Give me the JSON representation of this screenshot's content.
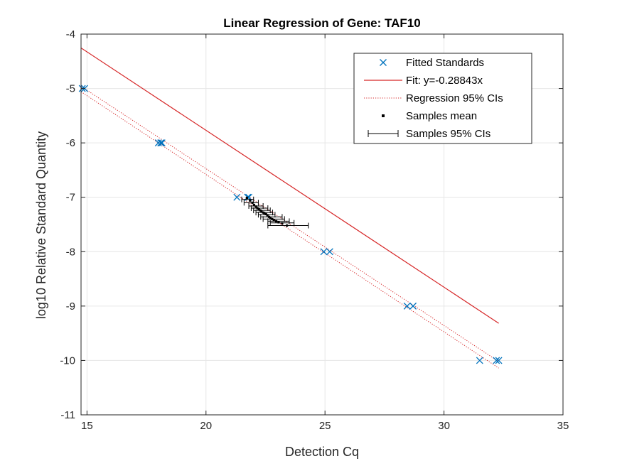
{
  "chart_data": {
    "type": "scatter",
    "title": "Linear Regression of Gene: TAF10",
    "xlabel": "Detection Cq",
    "ylabel": "log10 Relative Standard Quantity",
    "xlim": [
      14.75,
      35
    ],
    "ylim": [
      -11,
      -4
    ],
    "xticks": [
      15,
      20,
      25,
      30,
      35
    ],
    "yticks": [
      -11,
      -10,
      -9,
      -8,
      -7,
      -6,
      -5,
      -4
    ],
    "xtick_labels": [
      "15",
      "20",
      "25",
      "30",
      "35"
    ],
    "ytick_labels": [
      "-11",
      "-10",
      "-9",
      "-8",
      "-7",
      "-6",
      "-5",
      "-4"
    ],
    "grid": true,
    "legend_position": "top-right",
    "colors": {
      "standards": "#0072BD",
      "fit": "#D62728",
      "ci": "#D62728",
      "samples": "#000000",
      "grid": "#E6E6E6",
      "axes": "#262626"
    },
    "fit": {
      "slope": -0.28843,
      "intercept": 0,
      "x_range": [
        14.75,
        32.3
      ]
    },
    "regression_ci": {
      "upper": [
        [
          14.75,
          -4.96
        ],
        [
          32.3,
          -10.02
        ]
      ],
      "lower": [
        [
          14.75,
          -5.06
        ],
        [
          32.3,
          -10.14
        ]
      ]
    },
    "series": [
      {
        "name": "Fitted Standards",
        "marker": "x",
        "points": [
          [
            14.8,
            -5
          ],
          [
            14.9,
            -5
          ],
          [
            18.0,
            -6
          ],
          [
            18.1,
            -6
          ],
          [
            18.15,
            -6
          ],
          [
            21.3,
            -7
          ],
          [
            21.75,
            -7
          ],
          [
            21.8,
            -7
          ],
          [
            24.95,
            -8
          ],
          [
            25.2,
            -8
          ],
          [
            28.45,
            -9
          ],
          [
            28.7,
            -9
          ],
          [
            31.5,
            -10
          ],
          [
            32.2,
            -10
          ],
          [
            32.3,
            -10
          ]
        ]
      },
      {
        "name": "Fit: y=-0.28843x",
        "marker": "line"
      },
      {
        "name": "Regression 95% CIs",
        "marker": "dotted"
      },
      {
        "name": "Samples mean",
        "marker": "dot",
        "points": [
          [
            21.72,
            -7.01
          ],
          [
            21.85,
            -7.06
          ],
          [
            21.95,
            -7.1
          ],
          [
            22.02,
            -7.14
          ],
          [
            22.1,
            -7.17
          ],
          [
            22.16,
            -7.2
          ],
          [
            22.22,
            -7.22
          ],
          [
            22.28,
            -7.24
          ],
          [
            22.33,
            -7.26
          ],
          [
            22.4,
            -7.28
          ],
          [
            22.45,
            -7.29
          ],
          [
            22.52,
            -7.31
          ],
          [
            22.58,
            -7.33
          ],
          [
            22.65,
            -7.36
          ],
          [
            22.7,
            -7.38
          ],
          [
            22.78,
            -7.4
          ],
          [
            22.85,
            -7.42
          ],
          [
            22.95,
            -7.44
          ],
          [
            23.05,
            -7.46
          ],
          [
            23.2,
            -7.48
          ],
          [
            23.4,
            -7.52
          ]
        ]
      },
      {
        "name": "Samples 95% CIs",
        "marker": "errorbar",
        "intervals": [
          [
            21.5,
            22.0,
            -7.04
          ],
          [
            21.6,
            22.2,
            -7.1
          ],
          [
            21.8,
            22.4,
            -7.16
          ],
          [
            21.9,
            22.6,
            -7.2
          ],
          [
            22.0,
            22.7,
            -7.24
          ],
          [
            22.1,
            22.8,
            -7.28
          ],
          [
            22.2,
            22.9,
            -7.32
          ],
          [
            22.3,
            23.2,
            -7.36
          ],
          [
            22.4,
            23.3,
            -7.4
          ],
          [
            22.6,
            23.5,
            -7.44
          ],
          [
            22.7,
            23.7,
            -7.47
          ],
          [
            22.6,
            24.3,
            -7.52
          ]
        ]
      }
    ]
  }
}
